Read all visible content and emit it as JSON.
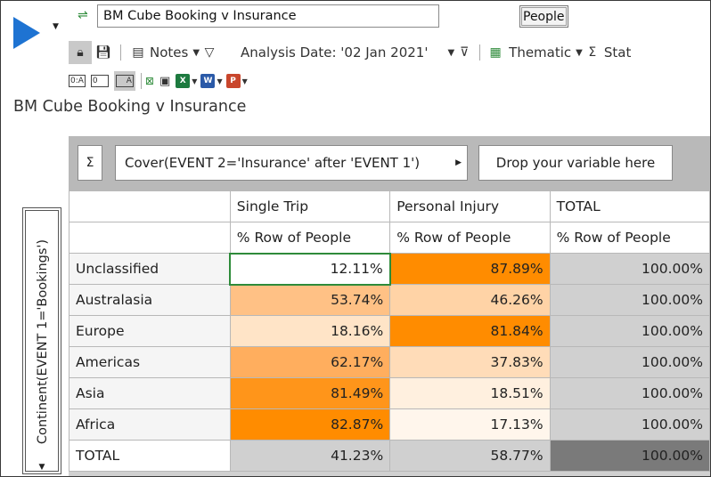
{
  "toolbar": {
    "table_name": "BM Cube Booking v Insurance",
    "base_button": "People",
    "notes_label": "Notes",
    "analysis_date": "Analysis Date: '02 Jan 2021'",
    "thematic_label": "Thematic",
    "stat_label": "Stat",
    "sigma": "Σ",
    "icons": [
      "run-icon",
      "dropdown-arrow-icon",
      "green-cube-icon",
      "lock-icon",
      "save-icon",
      "notes-icon",
      "filter-icon",
      "filter-options-icon",
      "thematic-grid-icon",
      "sigma-icon",
      "zero-a-icon",
      "zero-icon",
      "a-icon",
      "clear-x-icon",
      "table-icon",
      "excel-icon",
      "word-icon",
      "powerpoint-icon"
    ],
    "mini_labels": {
      "zero_a": "0:A",
      "zero": "0",
      "a": "A",
      "excel": "X",
      "word": "W",
      "ppt": "P"
    }
  },
  "title": "BM Cube Booking v Insurance",
  "grid": {
    "sigma": "Σ",
    "column_variable": "Cover(EVENT 2='Insurance' after 'EVENT 1')",
    "drop_placeholder": "Drop your variable here",
    "row_variable": "Continent(EVENT 1='Bookings')",
    "columns": [
      {
        "label": "Single Trip",
        "stat": "% Row of People"
      },
      {
        "label": "Personal Injury",
        "stat": "% Row of People"
      },
      {
        "label": "TOTAL",
        "stat": "% Row of People"
      }
    ],
    "rows": [
      {
        "label": "Unclassified",
        "cells": [
          "12.11%",
          "87.89%",
          "100.00%"
        ],
        "colors": [
          "#ffffff",
          "#ff8c00",
          "#d0d0d0"
        ]
      },
      {
        "label": "Australasia",
        "cells": [
          "53.74%",
          "46.26%",
          "100.00%"
        ],
        "colors": [
          "#ffc185",
          "#ffd3a6",
          "#d0d0d0"
        ]
      },
      {
        "label": "Europe",
        "cells": [
          "18.16%",
          "81.84%",
          "100.00%"
        ],
        "colors": [
          "#ffe4c7",
          "#ff8c00",
          "#d0d0d0"
        ]
      },
      {
        "label": "Americas",
        "cells": [
          "62.17%",
          "37.83%",
          "100.00%"
        ],
        "colors": [
          "#ffae5e",
          "#ffdcb8",
          "#d0d0d0"
        ]
      },
      {
        "label": "Asia",
        "cells": [
          "81.49%",
          "18.51%",
          "100.00%"
        ],
        "colors": [
          "#ff951a",
          "#fff0df",
          "#d0d0d0"
        ]
      },
      {
        "label": "Africa",
        "cells": [
          "82.87%",
          "17.13%",
          "100.00%"
        ],
        "colors": [
          "#ff8c00",
          "#fff6ec",
          "#d0d0d0"
        ]
      },
      {
        "label": "TOTAL",
        "cells": [
          "41.23%",
          "58.77%",
          "100.00%"
        ],
        "colors": [
          "#d0d0d0",
          "#d0d0d0",
          "#7a7a7a"
        ]
      }
    ]
  }
}
